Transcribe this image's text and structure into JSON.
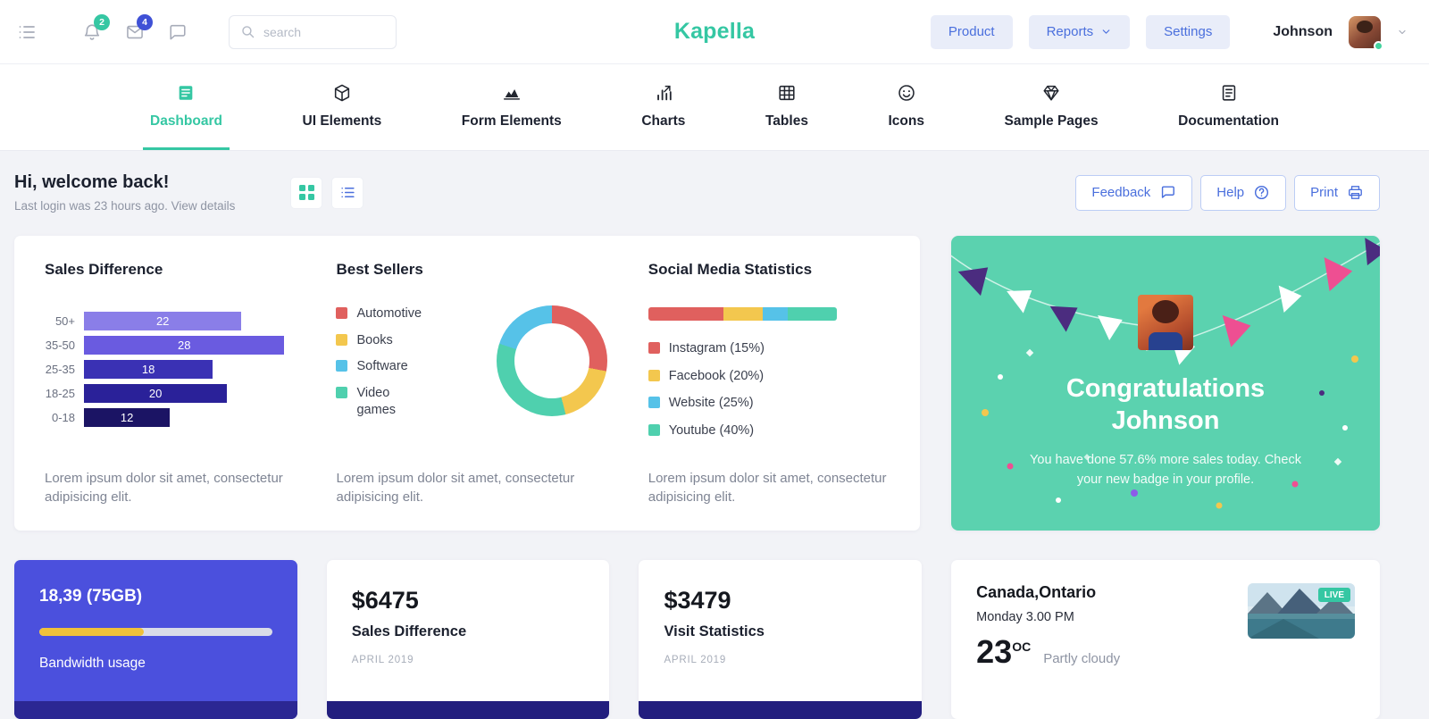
{
  "brand": {
    "name": "Kapella",
    "accent_teal": "#35c7a3",
    "accent_blue": "#4a6fdd",
    "accent_indigo": "#4b50dd"
  },
  "header": {
    "search_placeholder": "search",
    "notifications_badge": "2",
    "messages_badge": "4",
    "buttons": {
      "product": "Product",
      "reports": "Reports",
      "settings": "Settings"
    },
    "user": {
      "name": "Johnson"
    }
  },
  "tabs": [
    {
      "label": "Dashboard",
      "active": true
    },
    {
      "label": "UI Elements",
      "active": false
    },
    {
      "label": "Form Elements",
      "active": false
    },
    {
      "label": "Charts",
      "active": false
    },
    {
      "label": "Tables",
      "active": false
    },
    {
      "label": "Icons",
      "active": false
    },
    {
      "label": "Sample Pages",
      "active": false
    },
    {
      "label": "Documentation",
      "active": false
    }
  ],
  "welcome": {
    "title": "Hi, welcome back!",
    "subtitle": "Last login was 23 hours ago. View details",
    "feedback": "Feedback",
    "help": "Help",
    "print": "Print"
  },
  "panels": {
    "sales_difference": {
      "title": "Sales Difference",
      "description": "Lorem ipsum dolor sit amet, consectetur adipisicing elit."
    },
    "best_sellers": {
      "title": "Best Sellers",
      "description": "Lorem ipsum dolor sit amet, consectetur adipisicing elit."
    },
    "social_media": {
      "title": "Social Media Statistics",
      "description": "Lorem ipsum dolor sit amet, consectetur adipisicing elit."
    },
    "congratulations": {
      "title": "Congratulations Johnson",
      "message": "You have done 57.6% more sales today. Check your new badge in your profile."
    }
  },
  "stats": {
    "bandwidth": {
      "value": "18,39 (75GB)",
      "label": "Bandwidth usage",
      "progress_percent": 45
    },
    "sales": {
      "amount": "$6475",
      "label": "Sales Difference",
      "period": "APRIL 2019"
    },
    "visits": {
      "amount": "$3479",
      "label": "Visit Statistics",
      "period": "APRIL 2019"
    },
    "weather": {
      "location": "Canada,Ontario",
      "time": "Monday 3.00 PM",
      "temperature": "23",
      "unit": "OC",
      "condition": "Partly cloudy",
      "badge": "LIVE"
    }
  },
  "chart_data": [
    {
      "id": "sales-difference",
      "type": "bar",
      "orientation": "horizontal",
      "title": "Sales Difference",
      "categories": [
        "50+",
        "35-50",
        "25-35",
        "18-25",
        "0-18"
      ],
      "values": [
        22,
        28,
        18,
        20,
        12
      ],
      "xlim": [
        0,
        30
      ],
      "value_labels": "inside",
      "colors": [
        "#8a7ee8",
        "#6a5be0",
        "#3a31b4",
        "#2a2199",
        "#1b1464"
      ]
    },
    {
      "id": "best-sellers",
      "type": "pie",
      "donut": true,
      "title": "Best Sellers",
      "labels": [
        "Automotive",
        "Books",
        "Software",
        "Video games"
      ],
      "values": [
        28,
        18,
        20,
        34
      ],
      "colors": [
        "#e0605e",
        "#f3c74e",
        "#56c2e8",
        "#4fd0ae"
      ],
      "draw_order": [
        0,
        1,
        3,
        2
      ],
      "legend_position": "left"
    },
    {
      "id": "social-media",
      "type": "stacked-bar",
      "title": "Social Media Statistics",
      "labels": [
        "Instagram (15%)",
        "Facebook (20%)",
        "Website (25%)",
        "Youtube (40%)"
      ],
      "values": [
        15,
        20,
        25,
        40
      ],
      "visual_widths": [
        40,
        21,
        13,
        26
      ],
      "colors": [
        "#e0605e",
        "#f3c74e",
        "#56c2e8",
        "#4fd0ae"
      ]
    }
  ]
}
